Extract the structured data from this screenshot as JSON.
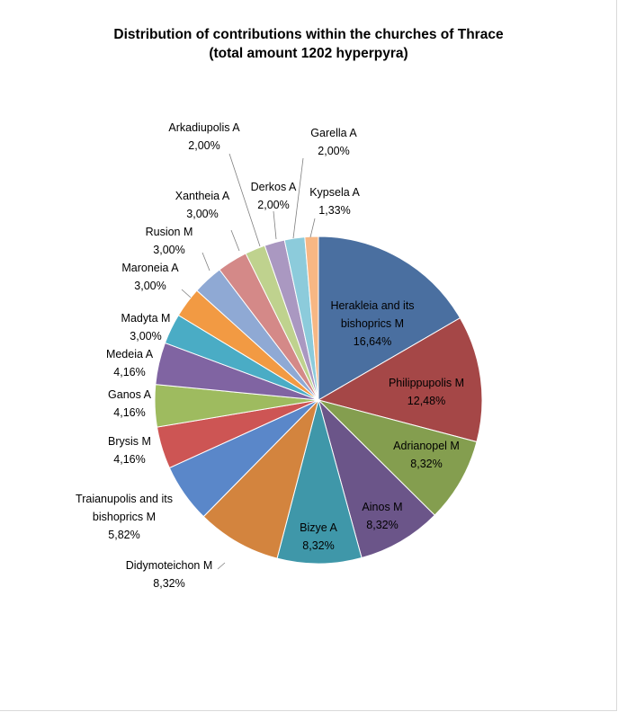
{
  "chart_data": {
    "type": "pie",
    "title": "Distribution of contributions within the churches of Thrace",
    "subtitle": "(total amount 1202 hyperpyra)",
    "slices": [
      {
        "name": "Herakleia and its bishoprics  M",
        "percent_label": "16,64%",
        "value": 16.64,
        "color": "#4a6fa0"
      },
      {
        "name": "Philippupolis  M",
        "percent_label": "12,48%",
        "value": 12.48,
        "color": "#a54747"
      },
      {
        "name": "Adrianopel   M",
        "percent_label": "8,32%",
        "value": 8.32,
        "color": "#849e4f"
      },
      {
        "name": "Ainos  M",
        "percent_label": "8,32%",
        "value": 8.32,
        "color": "#6b5589"
      },
      {
        "name": "Bizye  A",
        "percent_label": "8,32%",
        "value": 8.32,
        "color": "#3f97a9"
      },
      {
        "name": "Didymoteichon   M",
        "percent_label": "8,32%",
        "value": 8.32,
        "color": "#d3843e"
      },
      {
        "name": "Traianupolis and its bishoprics  M",
        "percent_label": "5,82%",
        "value": 5.82,
        "color": "#5a87c9"
      },
      {
        "name": "Brysis  M",
        "percent_label": "4,16%",
        "value": 4.16,
        "color": "#cd5554"
      },
      {
        "name": "Ganos  A",
        "percent_label": "4,16%",
        "value": 4.16,
        "color": "#9ebb5f"
      },
      {
        "name": "Medeia   A",
        "percent_label": "4,16%",
        "value": 4.16,
        "color": "#8064a2"
      },
      {
        "name": "Madyta  M",
        "percent_label": "3,00%",
        "value": 3.0,
        "color": "#4aacc5"
      },
      {
        "name": "Maroneia  A",
        "percent_label": "3,00%",
        "value": 3.0,
        "color": "#f29a43"
      },
      {
        "name": "Rusion  M",
        "percent_label": "3,00%",
        "value": 3.0,
        "color": "#8fa9d4"
      },
      {
        "name": "Xantheia  A",
        "percent_label": "3,00%",
        "value": 3.0,
        "color": "#d48988"
      },
      {
        "name": "Arkadiupolis  A",
        "percent_label": "2,00%",
        "value": 2.0,
        "color": "#bfd28e"
      },
      {
        "name": "Derkos  A",
        "percent_label": "2,00%",
        "value": 2.0,
        "color": "#aa98c1"
      },
      {
        "name": "Garella  A",
        "percent_label": "2,00%",
        "value": 2.0,
        "color": "#8ccbdb"
      },
      {
        "name": "Kypsela  A",
        "percent_label": "1,33%",
        "value": 1.33,
        "color": "#f7b784"
      }
    ]
  }
}
